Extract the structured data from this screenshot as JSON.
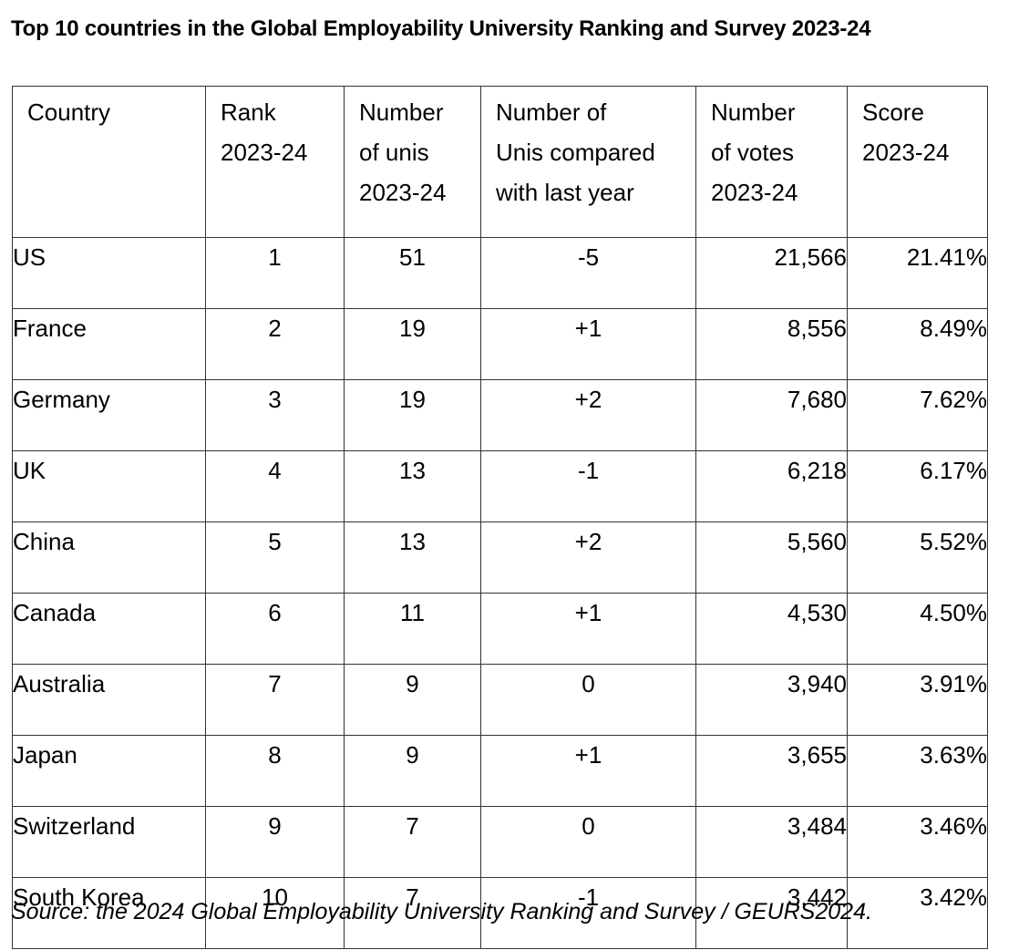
{
  "title": "Top 10 countries in the Global Employability University Ranking and Survey 2023-24",
  "headers": [
    [
      "Country"
    ],
    [
      "Rank",
      "2023-24"
    ],
    [
      "Number",
      "of unis",
      "2023-24"
    ],
    [
      "Number of",
      "Unis compared",
      "with last year"
    ],
    [
      "Number",
      "of votes",
      "2023-24"
    ],
    [
      "Score",
      "2023-24"
    ]
  ],
  "rows": [
    {
      "country": "US",
      "rank": "1",
      "unis": "51",
      "change": "-5",
      "votes": "21,566",
      "score": "21.41%"
    },
    {
      "country": "France",
      "rank": "2",
      "unis": "19",
      "change": "+1",
      "votes": "8,556",
      "score": "8.49%"
    },
    {
      "country": "Germany",
      "rank": "3",
      "unis": "19",
      "change": "+2",
      "votes": "7,680",
      "score": "7.62%"
    },
    {
      "country": "UK",
      "rank": "4",
      "unis": "13",
      "change": "-1",
      "votes": "6,218",
      "score": "6.17%"
    },
    {
      "country": "China",
      "rank": "5",
      "unis": "13",
      "change": "+2",
      "votes": "5,560",
      "score": "5.52%"
    },
    {
      "country": "Canada",
      "rank": "6",
      "unis": "11",
      "change": "+1",
      "votes": "4,530",
      "score": "4.50%"
    },
    {
      "country": "Australia",
      "rank": "7",
      "unis": "9",
      "change": "0",
      "votes": "3,940",
      "score": "3.91%"
    },
    {
      "country": "Japan",
      "rank": "8",
      "unis": "9",
      "change": "+1",
      "votes": "3,655",
      "score": "3.63%"
    },
    {
      "country": "Switzerland",
      "rank": "9",
      "unis": "7",
      "change": "0",
      "votes": "3,484",
      "score": "3.46%"
    },
    {
      "country": "South Korea",
      "rank": "10",
      "unis": "7",
      "change": "-1",
      "votes": "3,442",
      "score": "3.42%"
    }
  ],
  "source": "Source: the 2024 Global Employability University Ranking and Survey / GEURS2024."
}
